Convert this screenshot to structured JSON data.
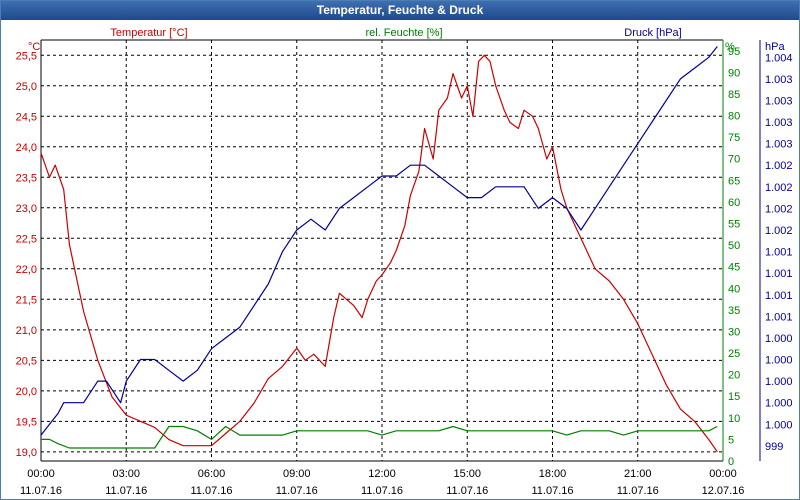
{
  "window": {
    "title": "Temperatur, Feuchte & Druck"
  },
  "colors": {
    "temperature": "#cc0000",
    "humidity": "#008000",
    "pressure": "#000099",
    "grid": "#000000",
    "frame": "#2a5a9a"
  },
  "chart_data": {
    "type": "line",
    "title": "Temperatur, Feuchte & Druck",
    "x_ticks": [
      {
        "time": "00:00",
        "date": "11.07.16"
      },
      {
        "time": "03:00",
        "date": "11.07.16"
      },
      {
        "time": "06:00",
        "date": "11.07.16"
      },
      {
        "time": "09:00",
        "date": "11.07.16"
      },
      {
        "time": "12:00",
        "date": "11.07.16"
      },
      {
        "time": "15:00",
        "date": "11.07.16"
      },
      {
        "time": "18:00",
        "date": "11.07.16"
      },
      {
        "time": "21:00",
        "date": "11.07.16"
      },
      {
        "time": "00:00",
        "date": "12.07.16"
      }
    ],
    "xlim_hours": [
      0,
      24
    ],
    "axes": {
      "temperature": {
        "unit": "°C",
        "series_label": "Temperatur [°C]",
        "ylim": [
          18.85,
          25.75
        ],
        "ticks": [
          "19,0",
          "19,5",
          "20,0",
          "20,5",
          "21,0",
          "21,5",
          "22,0",
          "22,5",
          "23,0",
          "23,5",
          "24,0",
          "24,5",
          "25,0",
          "25,5"
        ],
        "tick_values": [
          19.0,
          19.5,
          20.0,
          20.5,
          21.0,
          21.5,
          22.0,
          22.5,
          23.0,
          23.5,
          24.0,
          24.5,
          25.0,
          25.5
        ]
      },
      "humidity": {
        "unit": "%",
        "series_label": "rel. Feuchte [%]",
        "ylim": [
          0,
          97.5
        ],
        "ticks": [
          "0",
          "5",
          "10",
          "15",
          "20",
          "25",
          "30",
          "35",
          "40",
          "45",
          "50",
          "55",
          "60",
          "65",
          "70",
          "75",
          "80",
          "85",
          "90",
          "95"
        ],
        "tick_values": [
          0,
          5,
          10,
          15,
          20,
          25,
          30,
          35,
          40,
          45,
          50,
          55,
          60,
          65,
          70,
          75,
          80,
          85,
          90,
          95
        ]
      },
      "pressure": {
        "unit": "hPa",
        "series_label": "Druck [hPa]",
        "ticks": [
          "999",
          "1.000",
          "1.000",
          "1.000",
          "1.000",
          "1.000",
          "1.001",
          "1.001",
          "1.001",
          "1.001",
          "1.002",
          "1.002",
          "1.002",
          "1.002",
          "1.003",
          "1.003",
          "1.003",
          "1.003",
          "1.004"
        ],
        "tick_values": [
          0,
          1,
          2,
          3,
          4,
          5,
          6,
          7,
          8,
          9,
          10,
          11,
          12,
          13,
          14,
          15,
          16,
          17,
          18
        ],
        "ylim": [
          -0.7,
          18.8
        ]
      }
    },
    "series": [
      {
        "name": "Temperatur [°C]",
        "axis": "temperature",
        "hours": [
          0,
          0.3,
          0.5,
          0.8,
          1.0,
          1.5,
          2.0,
          2.5,
          3.0,
          3.5,
          4.0,
          4.5,
          5.0,
          5.5,
          6.0,
          6.5,
          7.0,
          7.5,
          8.0,
          8.5,
          9.0,
          9.3,
          9.6,
          10.0,
          10.3,
          10.5,
          11.0,
          11.3,
          11.5,
          11.8,
          12.0,
          12.3,
          12.5,
          12.8,
          13.0,
          13.3,
          13.5,
          13.8,
          14.0,
          14.3,
          14.5,
          14.8,
          15.0,
          15.2,
          15.4,
          15.6,
          15.8,
          16.0,
          16.3,
          16.5,
          16.8,
          17.0,
          17.3,
          17.5,
          17.8,
          18.0,
          18.3,
          18.5,
          19.0,
          19.5,
          20.0,
          20.5,
          21.0,
          21.5,
          22.0,
          22.5,
          23.0,
          23.5,
          23.8
        ],
        "values": [
          23.9,
          23.5,
          23.7,
          23.3,
          22.4,
          21.3,
          20.5,
          19.9,
          19.6,
          19.5,
          19.4,
          19.2,
          19.1,
          19.1,
          19.1,
          19.3,
          19.5,
          19.8,
          20.2,
          20.4,
          20.7,
          20.5,
          20.6,
          20.4,
          21.2,
          21.6,
          21.4,
          21.2,
          21.5,
          21.8,
          21.9,
          22.1,
          22.3,
          22.7,
          23.2,
          23.6,
          24.3,
          23.8,
          24.6,
          24.8,
          25.2,
          24.8,
          25.0,
          24.5,
          25.4,
          25.5,
          25.4,
          25.0,
          24.6,
          24.4,
          24.3,
          24.6,
          24.5,
          24.3,
          23.8,
          24.0,
          23.3,
          23.0,
          22.5,
          22.0,
          21.8,
          21.5,
          21.1,
          20.6,
          20.1,
          19.7,
          19.5,
          19.2,
          19.0
        ]
      },
      {
        "name": "rel. Feuchte [%]",
        "axis": "humidity",
        "hours": [
          0,
          0.3,
          0.6,
          1.0,
          2.0,
          3.0,
          3.5,
          4.0,
          4.5,
          5.0,
          5.5,
          6.0,
          6.5,
          7.0,
          7.5,
          8.0,
          8.5,
          9.0,
          9.5,
          10.0,
          10.5,
          11.0,
          11.5,
          12.0,
          12.5,
          13.0,
          13.5,
          14.0,
          14.5,
          15.0,
          15.5,
          16.0,
          16.5,
          17.0,
          17.5,
          18.0,
          18.5,
          19.0,
          19.5,
          20.0,
          20.5,
          21.0,
          21.5,
          22.0,
          22.5,
          23.0,
          23.5,
          23.8
        ],
        "values": [
          5,
          5,
          4,
          3,
          3,
          3,
          3,
          3,
          8,
          8,
          7,
          5,
          8,
          6,
          6,
          6,
          6,
          7,
          7,
          7,
          7,
          7,
          7,
          6,
          7,
          7,
          7,
          7,
          8,
          7,
          7,
          7,
          7,
          7,
          7,
          7,
          6,
          7,
          7,
          7,
          6,
          7,
          7,
          7,
          7,
          7,
          7,
          8
        ]
      },
      {
        "name": "Druck [hPa]",
        "axis": "pressure",
        "hours": [
          0,
          0.3,
          0.6,
          0.8,
          1.5,
          2.0,
          2.3,
          2.8,
          3.0,
          3.5,
          4.0,
          4.5,
          5.0,
          5.5,
          6.0,
          6.5,
          7.0,
          7.5,
          8.0,
          8.5,
          9.0,
          9.5,
          10.0,
          10.5,
          11.0,
          11.5,
          12.0,
          12.5,
          13.0,
          13.5,
          14.0,
          14.5,
          15.0,
          15.5,
          16.0,
          16.5,
          17.0,
          17.5,
          18.0,
          18.5,
          19.0,
          19.5,
          20.0,
          20.5,
          21.0,
          21.5,
          22.0,
          22.5,
          23.0,
          23.5,
          23.8
        ],
        "values": [
          0.5,
          1.0,
          1.5,
          2.0,
          2.0,
          3.0,
          3.0,
          2.0,
          3.0,
          4.0,
          4.0,
          3.5,
          3.0,
          3.5,
          4.5,
          5.0,
          5.5,
          6.5,
          7.5,
          9.0,
          10.0,
          10.5,
          10.0,
          11.0,
          11.5,
          12.0,
          12.5,
          12.5,
          13.0,
          13.0,
          12.5,
          12.0,
          11.5,
          11.5,
          12.0,
          12.0,
          12.0,
          11.0,
          11.5,
          11.0,
          10.0,
          11.0,
          12.0,
          13.0,
          14.0,
          15.0,
          16.0,
          17.0,
          17.5,
          18.0,
          18.5
        ]
      }
    ]
  }
}
